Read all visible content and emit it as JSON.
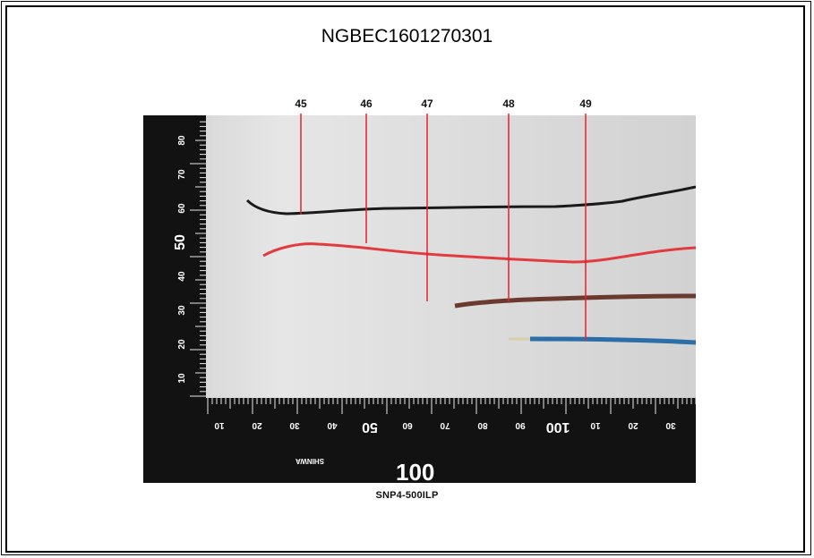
{
  "document": {
    "title": "NGBEC1601270301",
    "caption": "SNP4-500ILP"
  },
  "photo": {
    "markers": [
      {
        "label": "45"
      },
      {
        "label": "46"
      },
      {
        "label": "47"
      },
      {
        "label": "48"
      },
      {
        "label": "49"
      }
    ],
    "ruler_vertical_labels": [
      "80",
      "70",
      "60",
      "50",
      "40",
      "30",
      "20",
      "10"
    ],
    "ruler_horizontal_labels": [
      "10",
      "20",
      "30",
      "40",
      "50",
      "60",
      "70",
      "80",
      "90",
      "100",
      "10",
      "20",
      "30"
    ],
    "ruler_brand": "SHINWA",
    "colors": {
      "marker_line": "#e8202a",
      "wire_black": "#1a1a1a",
      "wire_red": "#e23a3e",
      "wire_brown": "#6b3a2e",
      "wire_blue": "#2b6ea8",
      "ruler_black": "#121212",
      "background_paper": "#e3e3e3"
    }
  }
}
